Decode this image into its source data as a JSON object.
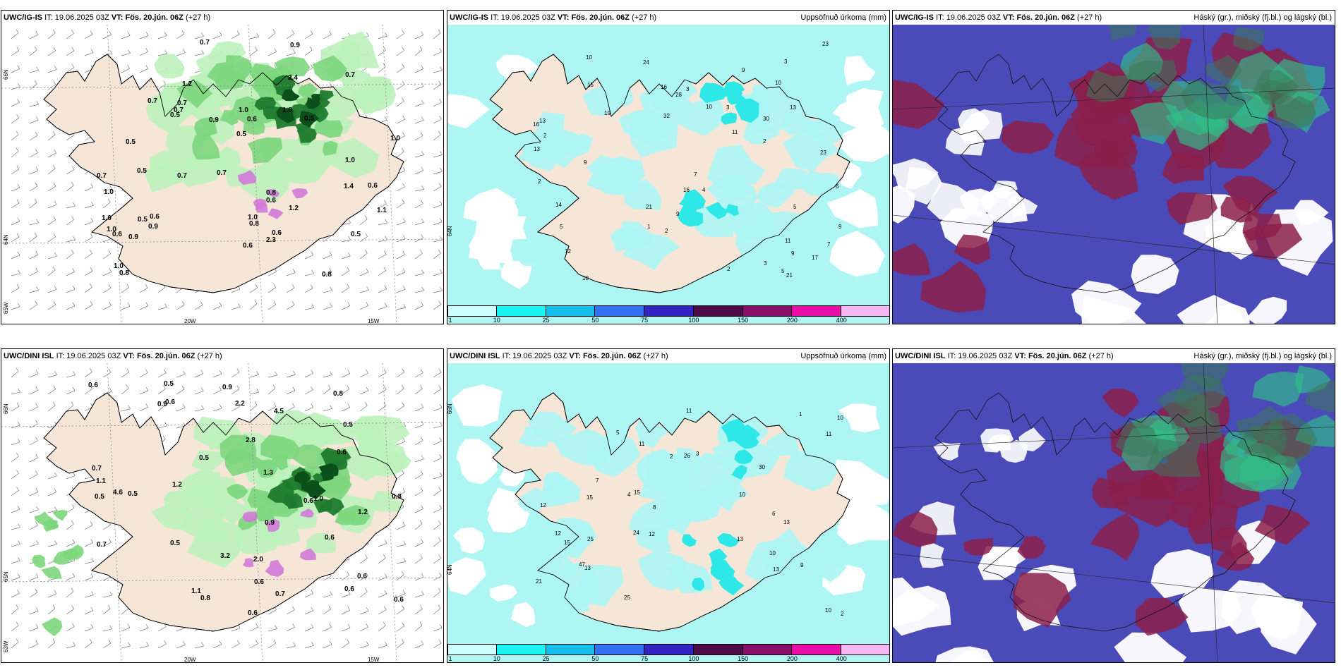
{
  "colors": {
    "land": "#f5e6d8",
    "sea_left": "#ffffff",
    "precip_light": "#bdf2bd",
    "precip_mid": "#7cd67c",
    "precip_dark": "#1f7a2e",
    "precip_vdark": "#0b4f1a",
    "snow_magenta": "#d27ad8",
    "cyan_light": "#aef6f4",
    "cyan_mid": "#2ee8e8",
    "cloud_high": "#4a4ab8",
    "cloud_mid": "#8b1f4a",
    "cloud_low": "#2fbf8a"
  },
  "row1": {
    "panel1": {
      "model": "UWC/IG-IS",
      "it_label": "IT:",
      "it_value": "19.06.2025 03Z",
      "vt_label": "VT:",
      "vt_value": "Fös. 20.jún. 06Z",
      "lead": "(+27 h)",
      "lon_labels": [
        "20W",
        "15W"
      ],
      "lat_labels": [
        "66N",
        "64N",
        "65W"
      ],
      "values": [
        "0.7",
        "0.5",
        "0.5",
        "1.0",
        "0.5",
        "0.9",
        "0.9",
        "1.0",
        "0.8",
        "0.8",
        "2.3",
        "2.4",
        "1.0",
        "0.5",
        "0.6",
        "0.7",
        "0.9",
        "0.6",
        "0.7",
        "0.5",
        "1.0",
        "0.6",
        "1.0",
        "1.0",
        "0.7",
        "1.0",
        "0.6",
        "0.5",
        "0.8",
        "0.7",
        "0.8",
        "0.5",
        "1.2",
        "0.6",
        "0.7",
        "1.0",
        "0.7",
        "1.1",
        "0.9",
        "0.7",
        "0.6",
        "1.2",
        "0.6",
        "1.4",
        "1.0"
      ]
    },
    "panel2": {
      "model": "UWC/IG-IS",
      "it_label": "IT:",
      "it_value": "19.06.2025 03Z",
      "vt_label": "VT:",
      "vt_value": "Fös. 20.jún. 06Z",
      "lead": "(+27 h)",
      "title_right": "Uppsöfnuð úrkoma (mm)",
      "lat_label": "64N",
      "values": [
        "2",
        "2",
        "3",
        "5",
        "2",
        "1",
        "10",
        "2",
        "3",
        "6",
        "3",
        "5",
        "9",
        "9",
        "7",
        "9",
        "23",
        "21",
        "32",
        "13",
        "28",
        "16",
        "30",
        "9",
        "13",
        "16",
        "12",
        "10",
        "24",
        "17",
        "14",
        "16",
        "23",
        "11",
        "15",
        "19",
        "21",
        "13",
        "10",
        "11",
        "10",
        "4",
        "3",
        "2",
        "7",
        "9",
        "5"
      ],
      "colorbar": {
        "colors": [
          "#ccfffe",
          "#17f4f4",
          "#14bdea",
          "#3370f2",
          "#3223c2",
          "#4e0a48",
          "#8a0e6a",
          "#ea0ca6",
          "#f6b6f2"
        ],
        "ticks": [
          "1",
          "10",
          "25",
          "50",
          "75",
          "100",
          "150",
          "200",
          "400"
        ]
      }
    },
    "panel3": {
      "model": "UWC/IG-IS",
      "it_label": "IT:",
      "it_value": "19.06.2025 03Z",
      "vt_label": "VT:",
      "vt_value": "Fös. 20.jún. 06Z",
      "lead": "(+27 h)",
      "title_right": "Háský (gr.), miðský (fj.bl.) og lágský (bl.)"
    }
  },
  "row2": {
    "panel1": {
      "model": "UWC/DINI ISL",
      "it_label": "IT:",
      "it_value": "19.06.2025 03Z",
      "vt_label": "VT:",
      "vt_value": "Fös. 20.jún. 06Z",
      "lead": "(+27 h)",
      "lon_labels": [
        "20W",
        "15W"
      ],
      "lat_labels": [
        "66N",
        "65N",
        "63W"
      ],
      "values": [
        "0.5",
        "0.5",
        "0.6",
        "0.8",
        "1.1",
        "2.0",
        "0.5",
        "0.7",
        "0.6",
        "0.9",
        "0.7",
        "4.5",
        "3.2",
        "1.1",
        "0.5",
        "0.6",
        "1.0",
        "0.6",
        "0.9",
        "0.6",
        "0.5",
        "0.8",
        "0.6",
        "0.6",
        "0.9",
        "0.5",
        "4.6",
        "2.2",
        "1.3",
        "1.2",
        "2.8",
        "0.6",
        "0.7",
        "0.6",
        "0.8",
        "0.6",
        "1.2"
      ]
    },
    "panel2": {
      "model": "UWC/DINI ISL",
      "it_label": "IT:",
      "it_value": "19.06.2025 03Z",
      "vt_label": "VT:",
      "vt_value": "Fös. 20.jún. 06Z",
      "lead": "(+27 h)",
      "title_right": "Uppsöfnuð úrkoma (mm)",
      "lat_labels": [
        "66N",
        "64N"
      ],
      "values": [
        "12",
        "13",
        "2",
        "10",
        "47",
        "13",
        "15",
        "21",
        "15",
        "26",
        "25",
        "15",
        "13",
        "11",
        "12",
        "12",
        "10",
        "13",
        "10",
        "24",
        "11",
        "30",
        "25",
        "11",
        "10",
        "9",
        "5",
        "3",
        "1",
        "8",
        "4",
        "2",
        "6",
        "7"
      ],
      "colorbar": {
        "colors": [
          "#ccfffe",
          "#17f4f4",
          "#14bdea",
          "#3370f2",
          "#3223c2",
          "#4e0a48",
          "#8a0e6a",
          "#ea0ca6",
          "#f6b6f2"
        ],
        "ticks": [
          "1",
          "10",
          "25",
          "50",
          "75",
          "100",
          "150",
          "200",
          "400"
        ]
      }
    },
    "panel3": {
      "model": "UWC/DINI ISL",
      "it_label": "IT:",
      "it_value": "19.06.2025 03Z",
      "vt_label": "VT:",
      "vt_value": "Fös. 20.jún. 06Z",
      "lead": "(+27 h)",
      "title_right": "Háský (gr.), miðský (fj.bl.) og lágský (bl.)"
    }
  }
}
